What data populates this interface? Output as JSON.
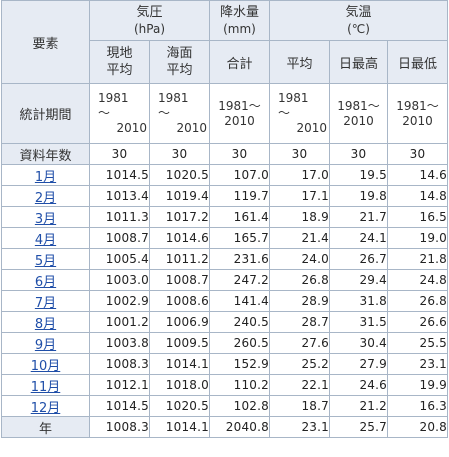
{
  "header": {
    "element_label": "要素",
    "pressure": {
      "title": "気圧",
      "unit": "(hPa)"
    },
    "precipitation": {
      "title": "降水量",
      "unit": "(mm)"
    },
    "temperature": {
      "title": "気温",
      "unit": "(℃)"
    },
    "sub": {
      "station_avg": [
        "現地",
        "平均"
      ],
      "sea_avg": [
        "海面",
        "平均"
      ],
      "total": "合計",
      "avg": "平均",
      "max": "日最高",
      "min": "日最低"
    }
  },
  "period": {
    "label": "統計期間",
    "start": "1981",
    "sep": "～",
    "end": "2010",
    "inline": "1981～2010",
    "inline_parts": [
      "1981～",
      "2010"
    ]
  },
  "years": {
    "label": "資料年数",
    "values": [
      "30",
      "30",
      "30",
      "30",
      "30",
      "30"
    ]
  },
  "rows": [
    {
      "label": "1月",
      "values": [
        "1014.5",
        "1020.5",
        "107.0",
        "17.0",
        "19.5",
        "14.6"
      ]
    },
    {
      "label": "2月",
      "values": [
        "1013.4",
        "1019.4",
        "119.7",
        "17.1",
        "19.8",
        "14.8"
      ]
    },
    {
      "label": "3月",
      "values": [
        "1011.3",
        "1017.2",
        "161.4",
        "18.9",
        "21.7",
        "16.5"
      ]
    },
    {
      "label": "4月",
      "values": [
        "1008.7",
        "1014.6",
        "165.7",
        "21.4",
        "24.1",
        "19.0"
      ]
    },
    {
      "label": "5月",
      "values": [
        "1005.4",
        "1011.2",
        "231.6",
        "24.0",
        "26.7",
        "21.8"
      ]
    },
    {
      "label": "6月",
      "values": [
        "1003.0",
        "1008.7",
        "247.2",
        "26.8",
        "29.4",
        "24.8"
      ]
    },
    {
      "label": "7月",
      "values": [
        "1002.9",
        "1008.6",
        "141.4",
        "28.9",
        "31.8",
        "26.8"
      ]
    },
    {
      "label": "8月",
      "values": [
        "1001.2",
        "1006.9",
        "240.5",
        "28.7",
        "31.5",
        "26.6"
      ]
    },
    {
      "label": "9月",
      "values": [
        "1003.8",
        "1009.5",
        "260.5",
        "27.6",
        "30.4",
        "25.5"
      ]
    },
    {
      "label": "10月",
      "values": [
        "1008.3",
        "1014.1",
        "152.9",
        "25.2",
        "27.9",
        "23.1"
      ]
    },
    {
      "label": "11月",
      "values": [
        "1012.1",
        "1018.0",
        "110.2",
        "22.1",
        "24.6",
        "19.9"
      ]
    },
    {
      "label": "12月",
      "values": [
        "1014.5",
        "1020.5",
        "102.8",
        "18.7",
        "21.2",
        "16.3"
      ]
    }
  ],
  "annual": {
    "label": "年",
    "values": [
      "1008.3",
      "1014.1",
      "2040.8",
      "23.1",
      "25.7",
      "20.8"
    ]
  },
  "colors": {
    "header_bg": "#e6ebf3",
    "border": "#a8b6c7",
    "link": "#1f4ea8"
  }
}
